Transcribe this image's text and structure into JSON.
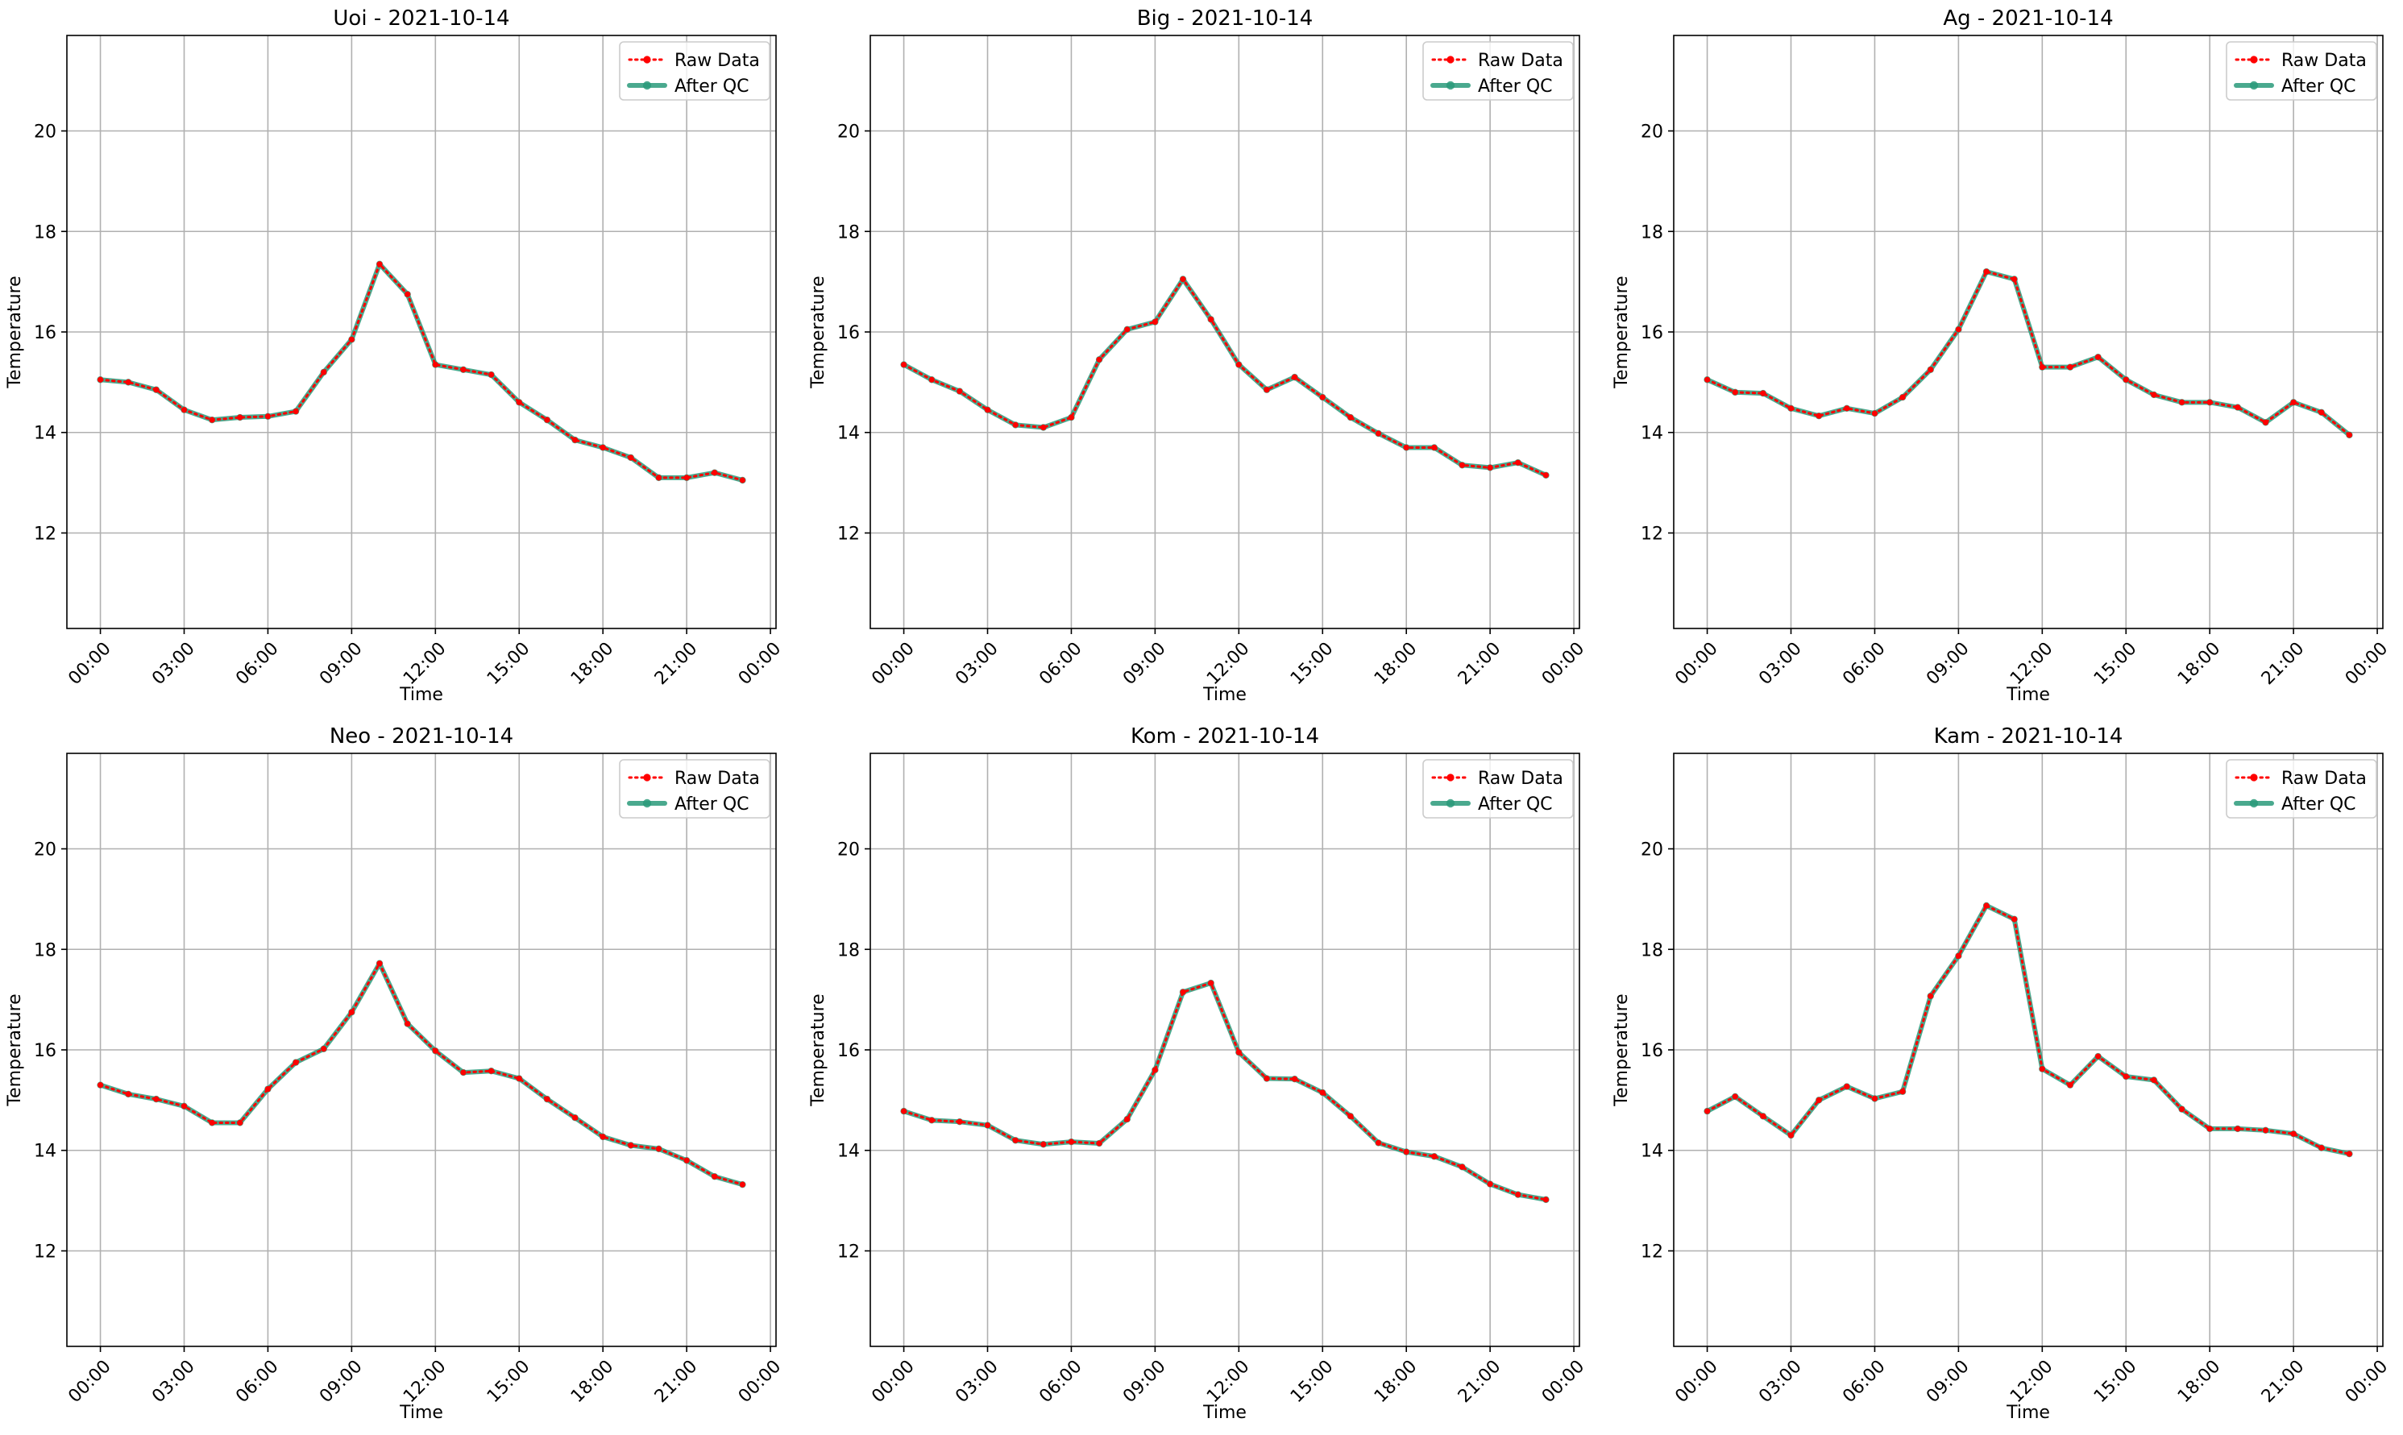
{
  "chart_data": [
    {
      "type": "line",
      "title": "Uoi - 2021-10-14",
      "xlabel": "Time",
      "ylabel": "Temperature",
      "xlim": [
        -1.2,
        24.2
      ],
      "ylim": [
        10.1,
        21.9
      ],
      "x_hours": [
        0,
        1,
        2,
        3,
        4,
        5,
        6,
        7,
        8,
        9,
        10,
        11,
        12,
        13,
        14,
        15,
        16,
        17,
        18,
        19,
        20,
        21,
        22,
        23
      ],
      "x_ticks": [
        0,
        3,
        6,
        9,
        12,
        15,
        18,
        21,
        24
      ],
      "x_tick_labels": [
        "00:00",
        "03:00",
        "06:00",
        "09:00",
        "12:00",
        "15:00",
        "18:00",
        "21:00",
        "00:00"
      ],
      "y_ticks": [
        12,
        14,
        16,
        18,
        20
      ],
      "grid": true,
      "legend": "upper right",
      "series": [
        {
          "name": "Raw Data",
          "color": "#ff0000",
          "style": "dotted",
          "values": [
            15.05,
            15.0,
            14.85,
            14.45,
            14.25,
            14.3,
            14.32,
            14.42,
            15.2,
            15.85,
            17.35,
            16.75,
            15.35,
            15.25,
            15.15,
            14.6,
            14.25,
            13.85,
            13.7,
            13.5,
            13.1,
            13.1,
            13.2,
            13.05
          ]
        },
        {
          "name": "After QC",
          "color": "#2a9a7a",
          "style": "solid",
          "values": [
            15.05,
            15.0,
            14.85,
            14.45,
            14.25,
            14.3,
            14.32,
            14.42,
            15.2,
            15.85,
            17.35,
            16.75,
            15.35,
            15.25,
            15.15,
            14.6,
            14.25,
            13.85,
            13.7,
            13.5,
            13.1,
            13.1,
            13.2,
            13.05
          ]
        }
      ]
    },
    {
      "type": "line",
      "title": "Big - 2021-10-14",
      "xlabel": "Time",
      "ylabel": "Temperature",
      "xlim": [
        -1.2,
        24.2
      ],
      "ylim": [
        10.1,
        21.9
      ],
      "x_hours": [
        0,
        1,
        2,
        3,
        4,
        5,
        6,
        7,
        8,
        9,
        10,
        11,
        12,
        13,
        14,
        15,
        16,
        17,
        18,
        19,
        20,
        21,
        22,
        23
      ],
      "x_ticks": [
        0,
        3,
        6,
        9,
        12,
        15,
        18,
        21,
        24
      ],
      "x_tick_labels": [
        "00:00",
        "03:00",
        "06:00",
        "09:00",
        "12:00",
        "15:00",
        "18:00",
        "21:00",
        "00:00"
      ],
      "y_ticks": [
        12,
        14,
        16,
        18,
        20
      ],
      "grid": true,
      "legend": "upper right",
      "series": [
        {
          "name": "Raw Data",
          "color": "#ff0000",
          "style": "dotted",
          "values": [
            15.35,
            15.05,
            14.82,
            14.45,
            14.15,
            14.1,
            14.3,
            15.45,
            16.05,
            16.2,
            17.05,
            16.25,
            15.35,
            14.85,
            15.1,
            14.7,
            14.3,
            13.98,
            13.7,
            13.7,
            13.35,
            13.3,
            13.4,
            13.15
          ]
        },
        {
          "name": "After QC",
          "color": "#2a9a7a",
          "style": "solid",
          "values": [
            15.35,
            15.05,
            14.82,
            14.45,
            14.15,
            14.1,
            14.3,
            15.45,
            16.05,
            16.2,
            17.05,
            16.25,
            15.35,
            14.85,
            15.1,
            14.7,
            14.3,
            13.98,
            13.7,
            13.7,
            13.35,
            13.3,
            13.4,
            13.15
          ]
        }
      ]
    },
    {
      "type": "line",
      "title": "Ag - 2021-10-14",
      "xlabel": "Time",
      "ylabel": "Temperature",
      "xlim": [
        -1.2,
        24.2
      ],
      "ylim": [
        10.1,
        21.9
      ],
      "x_hours": [
        0,
        1,
        2,
        3,
        4,
        5,
        6,
        7,
        8,
        9,
        10,
        11,
        12,
        13,
        14,
        15,
        16,
        17,
        18,
        19,
        20,
        21,
        22,
        23
      ],
      "x_ticks": [
        0,
        3,
        6,
        9,
        12,
        15,
        18,
        21,
        24
      ],
      "x_tick_labels": [
        "00:00",
        "03:00",
        "06:00",
        "09:00",
        "12:00",
        "15:00",
        "18:00",
        "21:00",
        "00:00"
      ],
      "y_ticks": [
        12,
        14,
        16,
        18,
        20
      ],
      "grid": true,
      "legend": "upper right",
      "series": [
        {
          "name": "Raw Data",
          "color": "#ff0000",
          "style": "dotted",
          "values": [
            15.05,
            14.8,
            14.78,
            14.48,
            14.33,
            14.48,
            14.38,
            14.7,
            15.25,
            16.05,
            17.2,
            17.05,
            15.3,
            15.3,
            15.5,
            15.05,
            14.75,
            14.6,
            14.6,
            14.5,
            14.2,
            14.6,
            14.4,
            13.95
          ]
        },
        {
          "name": "After QC",
          "color": "#2a9a7a",
          "style": "solid",
          "values": [
            15.05,
            14.8,
            14.78,
            14.48,
            14.33,
            14.48,
            14.38,
            14.7,
            15.25,
            16.05,
            17.2,
            17.05,
            15.3,
            15.3,
            15.5,
            15.05,
            14.75,
            14.6,
            14.6,
            14.5,
            14.2,
            14.6,
            14.4,
            13.95
          ]
        }
      ]
    },
    {
      "type": "line",
      "title": "Neo - 2021-10-14",
      "xlabel": "Time",
      "ylabel": "Temperature",
      "xlim": [
        -1.2,
        24.2
      ],
      "ylim": [
        10.1,
        21.9
      ],
      "x_hours": [
        0,
        1,
        2,
        3,
        4,
        5,
        6,
        7,
        8,
        9,
        10,
        11,
        12,
        13,
        14,
        15,
        16,
        17,
        18,
        19,
        20,
        21,
        22,
        23
      ],
      "x_ticks": [
        0,
        3,
        6,
        9,
        12,
        15,
        18,
        21,
        24
      ],
      "x_tick_labels": [
        "00:00",
        "03:00",
        "06:00",
        "09:00",
        "12:00",
        "15:00",
        "18:00",
        "21:00",
        "00:00"
      ],
      "y_ticks": [
        12,
        14,
        16,
        18,
        20
      ],
      "grid": true,
      "legend": "upper right",
      "series": [
        {
          "name": "Raw Data",
          "color": "#ff0000",
          "style": "dotted",
          "values": [
            15.3,
            15.12,
            15.02,
            14.88,
            14.55,
            14.55,
            15.22,
            15.75,
            16.02,
            16.75,
            17.72,
            16.52,
            15.98,
            15.55,
            15.58,
            15.43,
            15.02,
            14.65,
            14.27,
            14.1,
            14.03,
            13.8,
            13.48,
            13.32
          ]
        },
        {
          "name": "After QC",
          "color": "#2a9a7a",
          "style": "solid",
          "values": [
            15.3,
            15.12,
            15.02,
            14.88,
            14.55,
            14.55,
            15.22,
            15.75,
            16.02,
            16.75,
            17.72,
            16.52,
            15.98,
            15.55,
            15.58,
            15.43,
            15.02,
            14.65,
            14.27,
            14.1,
            14.03,
            13.8,
            13.48,
            13.32
          ]
        }
      ]
    },
    {
      "type": "line",
      "title": "Kom - 2021-10-14",
      "xlabel": "Time",
      "ylabel": "Temperature",
      "xlim": [
        -1.2,
        24.2
      ],
      "ylim": [
        10.1,
        21.9
      ],
      "x_hours": [
        0,
        1,
        2,
        3,
        4,
        5,
        6,
        7,
        8,
        9,
        10,
        11,
        12,
        13,
        14,
        15,
        16,
        17,
        18,
        19,
        20,
        21,
        22,
        23
      ],
      "x_ticks": [
        0,
        3,
        6,
        9,
        12,
        15,
        18,
        21,
        24
      ],
      "x_tick_labels": [
        "00:00",
        "03:00",
        "06:00",
        "09:00",
        "12:00",
        "15:00",
        "18:00",
        "21:00",
        "00:00"
      ],
      "y_ticks": [
        12,
        14,
        16,
        18,
        20
      ],
      "grid": true,
      "legend": "upper right",
      "series": [
        {
          "name": "Raw Data",
          "color": "#ff0000",
          "style": "dotted",
          "values": [
            14.78,
            14.6,
            14.57,
            14.5,
            14.2,
            14.12,
            14.17,
            14.14,
            14.62,
            15.6,
            17.15,
            17.33,
            15.95,
            15.43,
            15.42,
            15.15,
            14.68,
            14.15,
            13.97,
            13.88,
            13.67,
            13.33,
            13.12,
            13.02
          ]
        },
        {
          "name": "After QC",
          "color": "#2a9a7a",
          "style": "solid",
          "values": [
            14.78,
            14.6,
            14.57,
            14.5,
            14.2,
            14.12,
            14.17,
            14.14,
            14.62,
            15.6,
            17.15,
            17.33,
            15.95,
            15.43,
            15.42,
            15.15,
            14.68,
            14.15,
            13.97,
            13.88,
            13.67,
            13.33,
            13.12,
            13.02
          ]
        }
      ]
    },
    {
      "type": "line",
      "title": "Kam - 2021-10-14",
      "xlabel": "Time",
      "ylabel": "Temperature",
      "xlim": [
        -1.2,
        24.2
      ],
      "ylim": [
        10.1,
        21.9
      ],
      "x_hours": [
        0,
        1,
        2,
        3,
        4,
        5,
        6,
        7,
        8,
        9,
        10,
        11,
        12,
        13,
        14,
        15,
        16,
        17,
        18,
        19,
        20,
        21,
        22,
        23
      ],
      "x_ticks": [
        0,
        3,
        6,
        9,
        12,
        15,
        18,
        21,
        24
      ],
      "x_tick_labels": [
        "00:00",
        "03:00",
        "06:00",
        "09:00",
        "12:00",
        "15:00",
        "18:00",
        "21:00",
        "00:00"
      ],
      "y_ticks": [
        12,
        14,
        16,
        18,
        20
      ],
      "grid": true,
      "legend": "upper right",
      "series": [
        {
          "name": "Raw Data",
          "color": "#ff0000",
          "style": "dotted",
          "values": [
            14.78,
            15.07,
            14.68,
            14.3,
            15.0,
            15.27,
            15.03,
            15.17,
            17.07,
            17.87,
            18.87,
            18.6,
            15.62,
            15.3,
            15.87,
            15.47,
            15.4,
            14.82,
            14.43,
            14.43,
            14.4,
            14.33,
            14.05,
            13.93
          ]
        },
        {
          "name": "After QC",
          "color": "#2a9a7a",
          "style": "solid",
          "values": [
            14.78,
            15.07,
            14.68,
            14.3,
            15.0,
            15.27,
            15.03,
            15.17,
            17.07,
            17.87,
            18.87,
            18.6,
            15.62,
            15.3,
            15.87,
            15.47,
            15.4,
            14.82,
            14.43,
            14.43,
            14.4,
            14.33,
            14.05,
            13.93
          ]
        }
      ]
    }
  ]
}
